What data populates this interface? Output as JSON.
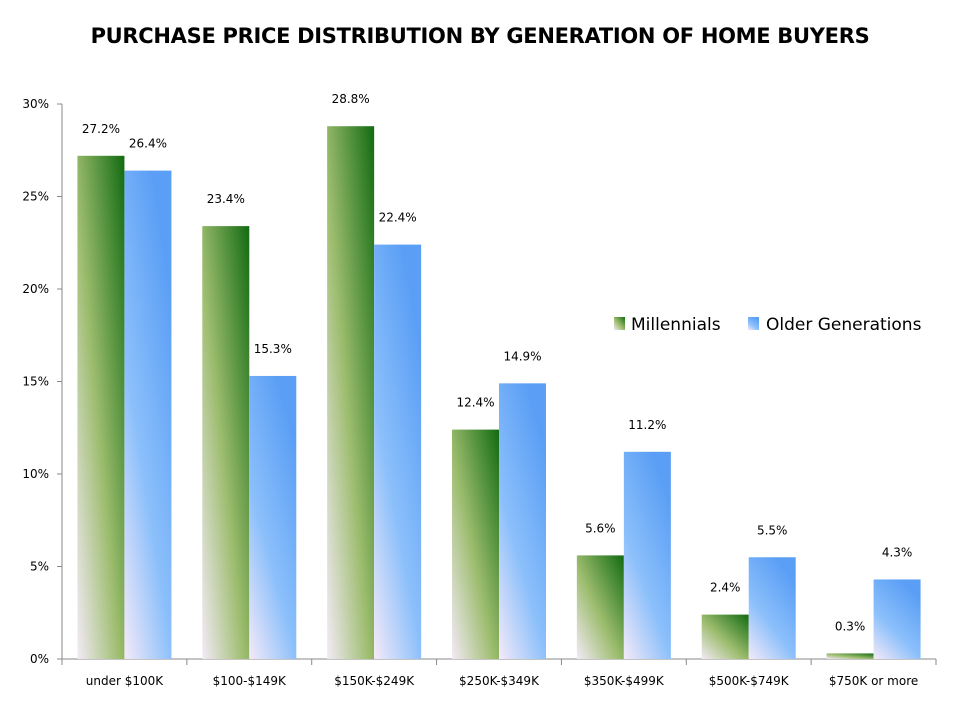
{
  "chart_data": {
    "type": "bar",
    "title": "PURCHASE PRICE DISTRIBUTION BY GENERATION OF HOME BUYERS",
    "xlabel": "",
    "ylabel": "",
    "ylim": [
      0,
      30
    ],
    "yticks": [
      0,
      5,
      10,
      15,
      20,
      25,
      30
    ],
    "ytick_labels": [
      "0%",
      "5%",
      "10%",
      "15%",
      "20%",
      "25%",
      "30%"
    ],
    "categories": [
      "under $100K",
      "$100-$149K",
      "$150K-$249K",
      "$250K-$349K",
      "$350K-$499K",
      "$500K-$749K",
      "$750K or more"
    ],
    "series": [
      {
        "name": "Millennials",
        "values": [
          27.2,
          23.4,
          28.8,
          12.4,
          5.6,
          2.4,
          0.3
        ],
        "labels": [
          "27.2%",
          "23.4%",
          "28.8%",
          "12.4%",
          "5.6%",
          "2.4%",
          "0.3%"
        ],
        "color": "#2e7d1e"
      },
      {
        "name": "Older Generations",
        "values": [
          26.4,
          15.3,
          22.4,
          14.9,
          11.2,
          5.5,
          4.3
        ],
        "labels": [
          "26.4%",
          "15.3%",
          "22.4%",
          "14.9%",
          "11.2%",
          "5.5%",
          "4.3%"
        ],
        "color": "#5a9ef5"
      }
    ],
    "legend_position": "right",
    "grid": false
  }
}
